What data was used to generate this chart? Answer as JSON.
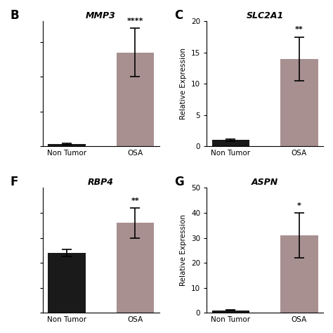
{
  "panels": [
    {
      "label": "B",
      "title": "MMP3",
      "categories": [
        "Non Tumor",
        "OSA"
      ],
      "values": [
        0.3,
        13.5
      ],
      "errors": [
        0.1,
        3.5
      ],
      "colors": [
        "#1a1a1a",
        "#a89090"
      ],
      "ylim": [
        0,
        18
      ],
      "yticks": [
        0,
        5,
        10,
        15
      ],
      "yticklabels": [
        "",
        "",
        "",
        ""
      ],
      "ylabel": "",
      "significance": "****",
      "sig_on": 1,
      "has_ylabel": false,
      "show_ytick_marks": true
    },
    {
      "label": "C",
      "title": "SLC2A1",
      "categories": [
        "Non Tumor",
        "OSA"
      ],
      "values": [
        1.0,
        14.0
      ],
      "errors": [
        0.15,
        3.5
      ],
      "colors": [
        "#1a1a1a",
        "#a89090"
      ],
      "ylim": [
        0,
        20
      ],
      "yticks": [
        0,
        5,
        10,
        15,
        20
      ],
      "yticklabels": [
        "0",
        "5",
        "10",
        "15",
        "20"
      ],
      "ylabel": "Relative Expression",
      "significance": "**",
      "sig_on": 1,
      "has_ylabel": true,
      "show_ytick_marks": true
    },
    {
      "label": "F",
      "title": "RBP4",
      "categories": [
        "Non Tumor",
        "OSA"
      ],
      "values": [
        4.8,
        7.2
      ],
      "errors": [
        0.3,
        1.2
      ],
      "colors": [
        "#1a1a1a",
        "#a89090"
      ],
      "ylim": [
        0,
        10
      ],
      "yticks": [
        0,
        2,
        4,
        6,
        8
      ],
      "yticklabels": [
        "",
        "",
        "",
        "",
        ""
      ],
      "ylabel": "",
      "significance": "**",
      "sig_on": 1,
      "has_ylabel": false,
      "show_ytick_marks": true
    },
    {
      "label": "G",
      "title": "ASPN",
      "categories": [
        "Non Tumor",
        "OSA"
      ],
      "values": [
        1.0,
        31.0
      ],
      "errors": [
        0.2,
        9.0
      ],
      "colors": [
        "#1a1a1a",
        "#a89090"
      ],
      "ylim": [
        0,
        50
      ],
      "yticks": [
        0,
        10,
        20,
        30,
        40,
        50
      ],
      "yticklabels": [
        "0",
        "10",
        "20",
        "30",
        "40",
        "50"
      ],
      "ylabel": "Relative Expression",
      "significance": "*",
      "sig_on": 1,
      "has_ylabel": true,
      "show_ytick_marks": true
    }
  ],
  "background_color": "#ffffff",
  "bar_width": 0.55,
  "fig_width": 4.74,
  "fig_height": 4.74
}
